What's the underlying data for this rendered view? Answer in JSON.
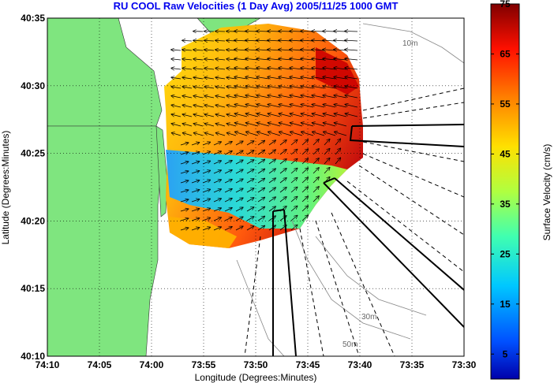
{
  "title": "RU COOL Raw Velocities (1 Day Avg) 2005/11/25 1000 GMT",
  "xlabel": "Longitude (Degrees:Minutes)",
  "ylabel": "Latitude (Degrees:Minutes)",
  "colorbar": {
    "label": "Surface Velocity (cm/s)",
    "ticks": [
      "75",
      "65",
      "55",
      "45",
      "35",
      "25",
      "15",
      "5"
    ],
    "range": [
      0,
      75
    ],
    "colormap": "jet"
  },
  "x_ticks": [
    "74:10",
    "74:05",
    "74:00",
    "73:55",
    "73:50",
    "73:45",
    "73:40",
    "73:35",
    "73:30"
  ],
  "y_ticks": [
    "40:35",
    "40:30",
    "40:25",
    "40:20",
    "40:15",
    "40:10"
  ],
  "contour_labels": [
    "10m",
    "30m",
    "50m"
  ],
  "colors": {
    "land": "#7fe57f",
    "title": "#0000ee",
    "grid": "#000000",
    "contour": "#888888"
  }
}
